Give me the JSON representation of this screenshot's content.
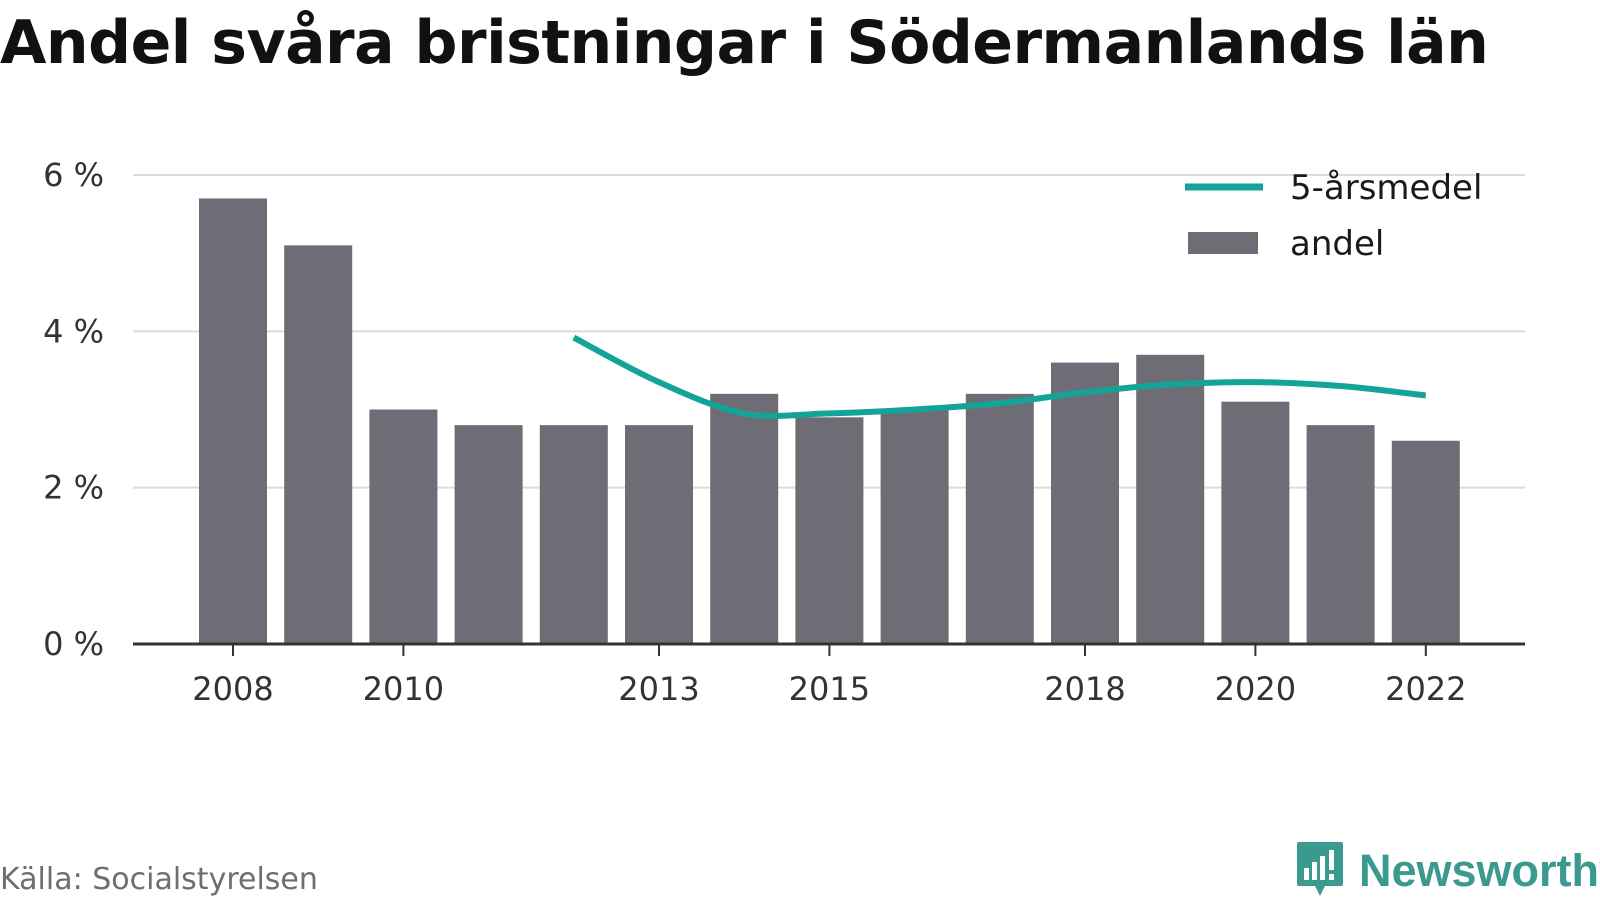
{
  "title": "Andel svåra bristningar i Södermanlands län",
  "source": "Källa: Socialstyrelsen",
  "brand": {
    "name": "Newsworthy",
    "icon": "newsworthy-logo-icon"
  },
  "colors": {
    "bars": "#6e6d75",
    "line": "#12a597",
    "grid": "#dcdcdc",
    "axis": "#333333",
    "brand": "#3b9a8f"
  },
  "chart_data": {
    "type": "bar",
    "title": "Andel svåra bristningar i Södermanlands län",
    "xlabel": "",
    "ylabel": "",
    "x": [
      2008,
      2009,
      2010,
      2011,
      2012,
      2013,
      2014,
      2015,
      2016,
      2017,
      2018,
      2019,
      2020,
      2021,
      2022
    ],
    "x_ticks": [
      "2008",
      "2010",
      "2013",
      "2015",
      "2018",
      "2020",
      "2022"
    ],
    "y_ticks": [
      "0 %",
      "2 %",
      "4 %",
      "6 %"
    ],
    "ylim": [
      0,
      6
    ],
    "grid": true,
    "legend_position": "top-right",
    "series": [
      {
        "name": "andel",
        "type": "bar",
        "values": [
          5.7,
          5.1,
          3.0,
          2.8,
          2.8,
          2.8,
          3.2,
          2.9,
          3.0,
          3.2,
          3.6,
          3.7,
          3.1,
          2.8,
          2.6
        ]
      },
      {
        "name": "5-årsmedel",
        "type": "line",
        "values": [
          null,
          null,
          null,
          null,
          3.92,
          3.35,
          2.95,
          2.95,
          3.0,
          3.08,
          3.22,
          3.32,
          3.35,
          3.3,
          3.18
        ]
      }
    ],
    "legend": [
      "5-årsmedel",
      "andel"
    ]
  }
}
